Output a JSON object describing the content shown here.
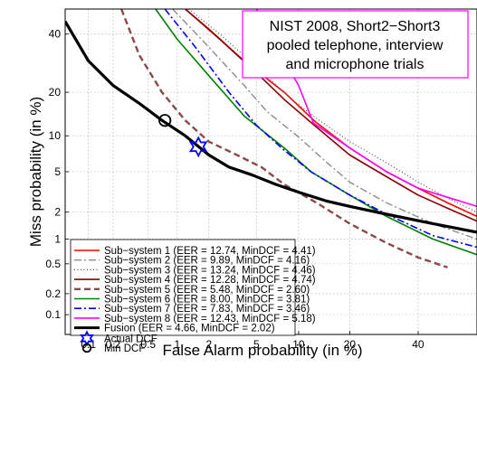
{
  "chart_data": {
    "type": "line",
    "title": "",
    "xlabel": "False Alarm probability (in %)",
    "ylabel": "Miss probability (in %)",
    "x_scale": "normal-deviate",
    "y_scale": "normal-deviate",
    "xlim": [
      0.05,
      60
    ],
    "ylim": [
      0.05,
      50
    ],
    "x_ticks": [
      "0.1",
      "0.2",
      "0.5",
      "1",
      "2",
      "5",
      "10",
      "20",
      "40"
    ],
    "y_ticks": [
      "0.1",
      "0.2",
      "0.5",
      "1",
      "2",
      "5",
      "10",
      "20",
      "40"
    ],
    "grid": true,
    "legend_position": "bottom-left",
    "annotation": [
      "NIST 2008, Short2−Short3",
      "pooled telephone, interview",
      "and microphone trials"
    ],
    "annotation_border_color": "#ff00ff",
    "series": [
      {
        "name": "Sub−system 1 (EER = 12.74, MinDCF = 4.41)",
        "color": "#ff0000",
        "dash": "solid",
        "width": 1.6,
        "points": [
          [
            1.2,
            50
          ],
          [
            2,
            42
          ],
          [
            4,
            30
          ],
          [
            8,
            20
          ],
          [
            12.74,
            12.74
          ],
          [
            20,
            8
          ],
          [
            30,
            5
          ],
          [
            40,
            3.5
          ],
          [
            50,
            2.5
          ],
          [
            60,
            1.8
          ]
        ]
      },
      {
        "name": "Sub−system 2 (EER = 9.89, MinDCF = 4.16)",
        "color": "#8c8c8c",
        "dash": "dashdot",
        "width": 1.4,
        "points": [
          [
            0.9,
            50
          ],
          [
            2,
            35
          ],
          [
            4,
            22
          ],
          [
            6,
            15
          ],
          [
            9.89,
            9.89
          ],
          [
            15,
            6
          ],
          [
            20,
            4
          ],
          [
            30,
            2.5
          ],
          [
            45,
            1.5
          ],
          [
            60,
            1.0
          ]
        ]
      },
      {
        "name": "Sub−system 3 (EER = 13.24, MinDCF = 4.46)",
        "color": "#555555",
        "dash": "dotted",
        "width": 1.2,
        "points": [
          [
            1.3,
            50
          ],
          [
            2.5,
            40
          ],
          [
            5,
            28
          ],
          [
            9,
            18
          ],
          [
            13.24,
            13.24
          ],
          [
            20,
            9
          ],
          [
            30,
            6
          ],
          [
            40,
            4
          ],
          [
            50,
            2.8
          ],
          [
            60,
            2.0
          ]
        ]
      },
      {
        "name": "Sub−system 4 (EER = 12.28, MinDCF = 4.74)",
        "color": "#8b0000",
        "dash": "solid",
        "width": 1.6,
        "points": [
          [
            1.2,
            50
          ],
          [
            2.5,
            38
          ],
          [
            5,
            26
          ],
          [
            8,
            18
          ],
          [
            12.28,
            12.28
          ],
          [
            20,
            7
          ],
          [
            30,
            4.5
          ],
          [
            40,
            3
          ],
          [
            50,
            2.2
          ],
          [
            60,
            1.6
          ]
        ]
      },
      {
        "name": "Sub−system 5 (EER = 5.48, MinDCF = 2.60)",
        "color": "#8b4a4a",
        "dash": "dashed",
        "width": 2.4,
        "points": [
          [
            0.25,
            50
          ],
          [
            0.4,
            32
          ],
          [
            0.7,
            20
          ],
          [
            1.2,
            13
          ],
          [
            2,
            9
          ],
          [
            3.5,
            7
          ],
          [
            5.48,
            5.48
          ],
          [
            8,
            3.8
          ],
          [
            13,
            2.5
          ],
          [
            20,
            1.5
          ],
          [
            30,
            0.9
          ],
          [
            40,
            0.6
          ],
          [
            50,
            0.45
          ]
        ]
      },
      {
        "name": "Sub−system 6 (EER = 8.00, MinDCF = 3.81)",
        "color": "#008000",
        "dash": "solid",
        "width": 1.6,
        "points": [
          [
            0.6,
            50
          ],
          [
            1,
            38
          ],
          [
            2,
            25
          ],
          [
            4,
            14
          ],
          [
            8,
            8
          ],
          [
            12,
            5
          ],
          [
            20,
            3
          ],
          [
            30,
            1.8
          ],
          [
            45,
            1.0
          ],
          [
            60,
            0.65
          ]
        ]
      },
      {
        "name": "Sub−system 7 (EER = 7.83, MinDCF = 3.46)",
        "color": "#0000ff",
        "dash": "dashdot",
        "width": 1.6,
        "points": [
          [
            0.75,
            50
          ],
          [
            1.5,
            35
          ],
          [
            3,
            20
          ],
          [
            5,
            12
          ],
          [
            7.83,
            7.83
          ],
          [
            12,
            5
          ],
          [
            20,
            3
          ],
          [
            30,
            1.9
          ],
          [
            45,
            1.1
          ],
          [
            60,
            0.8
          ]
        ]
      },
      {
        "name": "Sub−system 8 (EER = 12.43, MinDCF = 5.18)",
        "color": "#ff00ff",
        "dash": "solid",
        "width": 1.6,
        "points": [
          [
            5,
            50
          ],
          [
            7,
            35
          ],
          [
            10,
            22
          ],
          [
            12.43,
            12.43
          ],
          [
            20,
            8
          ],
          [
            30,
            5
          ],
          [
            40,
            3.5
          ],
          [
            60,
            2.3
          ]
        ]
      },
      {
        "name": "Fusion (EER = 4.66, MinDCF = 2.02)",
        "color": "#000000",
        "dash": "solid",
        "width": 3.2,
        "points": [
          [
            0.05,
            45
          ],
          [
            0.1,
            30
          ],
          [
            0.2,
            22
          ],
          [
            0.4,
            17
          ],
          [
            0.7,
            13
          ],
          [
            1.2,
            10
          ],
          [
            2,
            7
          ],
          [
            3,
            5.5
          ],
          [
            4.66,
            4.66
          ],
          [
            7,
            3.8
          ],
          [
            10,
            3.2
          ],
          [
            15,
            2.6
          ],
          [
            20,
            2.3
          ],
          [
            30,
            1.9
          ],
          [
            45,
            1.5
          ],
          [
            60,
            1.2
          ]
        ]
      }
    ],
    "markers": [
      {
        "name": "Actual DCF",
        "shape": "hexagram",
        "color": "#0000ff",
        "x": 1.6,
        "y": 8.2
      },
      {
        "name": "Min DCF",
        "shape": "circle",
        "color": "#000000",
        "x": 0.75,
        "y": 13
      }
    ]
  }
}
